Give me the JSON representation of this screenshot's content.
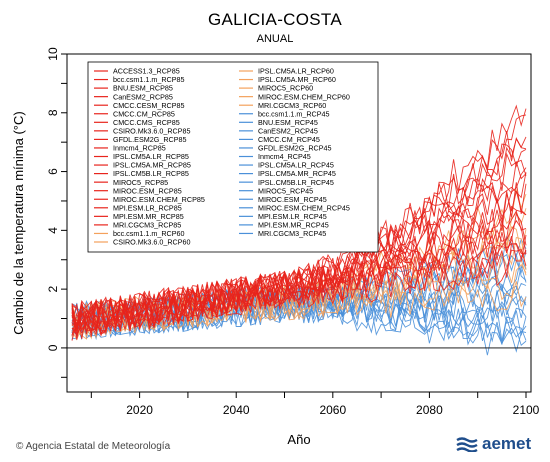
{
  "header": {
    "title": "GALICIA-COSTA",
    "subtitle": "ANUAL"
  },
  "footer": {
    "credit": "© Agencia Estatal de Meteorología",
    "logo": "aemet"
  },
  "colors": {
    "rcp85": "#e8241c",
    "rcp60": "#f4a15c",
    "rcp45": "#4a90d9",
    "zero_line": "#000000"
  },
  "chart_data": {
    "type": "line",
    "title": "GALICIA-COSTA",
    "subtitle": "ANUAL",
    "xlabel": "Año",
    "ylabel": "Cambio de la temperatura mínima (°C)",
    "xlim": [
      2006,
      2100
    ],
    "ylim": [
      -1.5,
      10
    ],
    "xticks": [
      2020,
      2040,
      2060,
      2080,
      2100
    ],
    "yticks": [
      0,
      2,
      4,
      6,
      8,
      10
    ],
    "grid": false,
    "legend_position": "top-left",
    "envelopes": {
      "RCP85": {
        "start": [
          2006,
          0.9
        ],
        "mid": [
          2050,
          2.0
        ],
        "end": [
          2100,
          4.5
        ],
        "end_min": 2.8,
        "end_max": 8.0
      },
      "RCP60": {
        "start": [
          2006,
          0.9
        ],
        "mid": [
          2050,
          1.6
        ],
        "end": [
          2100,
          3.3
        ],
        "end_min": 1.8,
        "end_max": 5.0
      },
      "RCP45": {
        "start": [
          2006,
          0.9
        ],
        "mid": [
          2050,
          1.5
        ],
        "end": [
          2100,
          2.1
        ],
        "end_min": 0.1,
        "end_max": 3.4
      }
    },
    "series": [
      {
        "name": "ACCESS1.3_RCP85",
        "scenario": "RCP85"
      },
      {
        "name": "bcc.csm1.1.m_RCP85",
        "scenario": "RCP85"
      },
      {
        "name": "BNU.ESM_RCP85",
        "scenario": "RCP85"
      },
      {
        "name": "CanESM2_RCP85",
        "scenario": "RCP85"
      },
      {
        "name": "CMCC.CESM_RCP85",
        "scenario": "RCP85"
      },
      {
        "name": "CMCC.CM_RCP85",
        "scenario": "RCP85"
      },
      {
        "name": "CMCC.CMS_RCP85",
        "scenario": "RCP85"
      },
      {
        "name": "CSIRO.Mk3.6.0_RCP85",
        "scenario": "RCP85"
      },
      {
        "name": "GFDL.ESM2G_RCP85",
        "scenario": "RCP85"
      },
      {
        "name": "Inmcm4_RCP85",
        "scenario": "RCP85"
      },
      {
        "name": "IPSL.CM5A.LR_RCP85",
        "scenario": "RCP85"
      },
      {
        "name": "IPSL.CM5A.MR_RCP85",
        "scenario": "RCP85"
      },
      {
        "name": "IPSL.CM5B.LR_RCP85",
        "scenario": "RCP85"
      },
      {
        "name": "MIROC5_RCP85",
        "scenario": "RCP85"
      },
      {
        "name": "MIROC.ESM_RCP85",
        "scenario": "RCP85"
      },
      {
        "name": "MIROC.ESM.CHEM_RCP85",
        "scenario": "RCP85"
      },
      {
        "name": "MPI.ESM.LR_RCP85",
        "scenario": "RCP85"
      },
      {
        "name": "MPI.ESM.MR_RCP85",
        "scenario": "RCP85"
      },
      {
        "name": "MRI.CGCM3_RCP85",
        "scenario": "RCP85"
      },
      {
        "name": "bcc.csm1.1.m_RCP60",
        "scenario": "RCP60"
      },
      {
        "name": "CSIRO.Mk3.6.0_RCP60",
        "scenario": "RCP60"
      },
      {
        "name": "IPSL.CM5A.LR_RCP60",
        "scenario": "RCP60"
      },
      {
        "name": "IPSL.CM5A.MR_RCP60",
        "scenario": "RCP60"
      },
      {
        "name": "MIROC5_RCP60",
        "scenario": "RCP60"
      },
      {
        "name": "MIROC.ESM.CHEM_RCP60",
        "scenario": "RCP60"
      },
      {
        "name": "MRI.CGCM3_RCP60",
        "scenario": "RCP60"
      },
      {
        "name": "bcc.csm1.1.m_RCP45",
        "scenario": "RCP45"
      },
      {
        "name": "BNU.ESM_RCP45",
        "scenario": "RCP45"
      },
      {
        "name": "CanESM2_RCP45",
        "scenario": "RCP45"
      },
      {
        "name": "CMCC.CM_RCP45",
        "scenario": "RCP45"
      },
      {
        "name": "GFDL.ESM2G_RCP45",
        "scenario": "RCP45"
      },
      {
        "name": "Inmcm4_RCP45",
        "scenario": "RCP45"
      },
      {
        "name": "IPSL.CM5A.LR_RCP45",
        "scenario": "RCP45"
      },
      {
        "name": "IPSL.CM5A.MR_RCP45",
        "scenario": "RCP45"
      },
      {
        "name": "IPSL.CM5B.LR_RCP45",
        "scenario": "RCP45"
      },
      {
        "name": "MIROC5_RCP45",
        "scenario": "RCP45"
      },
      {
        "name": "MIROC.ESM_RCP45",
        "scenario": "RCP45"
      },
      {
        "name": "MIROC.ESM.CHEM_RCP45",
        "scenario": "RCP45"
      },
      {
        "name": "MPI.ESM.LR_RCP45",
        "scenario": "RCP45"
      },
      {
        "name": "MPI.ESM.MR_RCP45",
        "scenario": "RCP45"
      },
      {
        "name": "MRI.CGCM3_RCP45",
        "scenario": "RCP45"
      }
    ]
  }
}
